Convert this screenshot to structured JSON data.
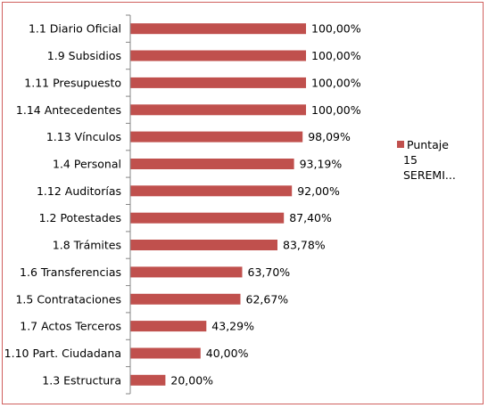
{
  "chart_data": {
    "type": "bar",
    "orientation": "horizontal",
    "categories": [
      "1.1 Diario Oficial",
      "1.9 Subsidios",
      "1.11 Presupuesto",
      "1.14 Antecedentes",
      "1.13 Vínculos",
      "1.4 Personal",
      "1.12 Auditorías",
      "1.2 Potestades",
      "1.8 Trámites",
      "1.6 Transferencias",
      "1.5 Contrataciones",
      "1.7 Actos Terceros",
      "1.10 Part. Ciudadana",
      "1.3 Estructura"
    ],
    "series": [
      {
        "name": "Puntaje 15 SEREMI...",
        "values": [
          100.0,
          100.0,
          100.0,
          100.0,
          98.09,
          93.19,
          92.0,
          87.4,
          83.78,
          63.7,
          62.67,
          43.29,
          40.0,
          20.0
        ],
        "data_labels": [
          "100,00%",
          "100,00%",
          "100,00%",
          "100,00%",
          "98,09%",
          "93,19%",
          "92,00%",
          "87,40%",
          "83,78%",
          "63,70%",
          "62,67%",
          "43,29%",
          "40,00%",
          "20,00%"
        ]
      }
    ],
    "legend": {
      "position": "right",
      "lines": [
        "Puntaje",
        "15",
        "SEREMI..."
      ]
    },
    "xlim": [
      0,
      100
    ],
    "grid": false,
    "colors": {
      "bar": "#c0504d",
      "axis": "#868686",
      "border": "#d0605e"
    }
  }
}
